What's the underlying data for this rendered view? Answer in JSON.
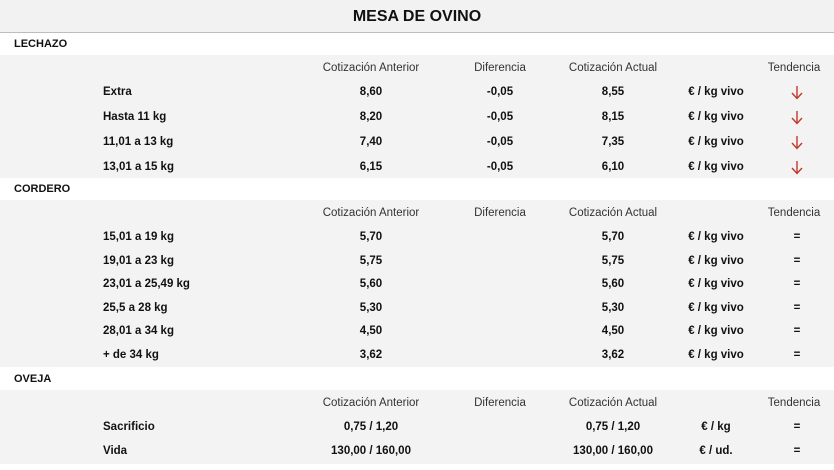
{
  "title": "MESA DE OVINO",
  "columns": {
    "prev": "Cotización Anterior",
    "diff": "Diferencia",
    "curr": "Cotización Actual",
    "trend": "Tendencia"
  },
  "colors": {
    "arrow": "#c0392b",
    "band": "#f3f3f3"
  },
  "sections": [
    {
      "name": "LECHAZO",
      "rows": [
        {
          "label": "Extra",
          "prev": "8,60",
          "diff": "-0,05",
          "curr": "8,55",
          "unit": "€ / kg vivo",
          "trend": "down-arrow-icon"
        },
        {
          "label": "Hasta 11 kg",
          "prev": "8,20",
          "diff": "-0,05",
          "curr": "8,15",
          "unit": "€ / kg vivo",
          "trend": "down-arrow-icon"
        },
        {
          "label": "11,01 a 13 kg",
          "prev": "7,40",
          "diff": "-0,05",
          "curr": "7,35",
          "unit": "€ / kg vivo",
          "trend": "down-arrow-icon"
        },
        {
          "label": "13,01 a 15 kg",
          "prev": "6,15",
          "diff": "-0,05",
          "curr": "6,10",
          "unit": "€ / kg vivo",
          "trend": "down-arrow-icon"
        }
      ]
    },
    {
      "name": "CORDERO",
      "rows": [
        {
          "label": "15,01 a 19 kg",
          "prev": "5,70",
          "diff": "",
          "curr": "5,70",
          "unit": "€ / kg vivo",
          "trend": "="
        },
        {
          "label": "19,01 a 23 kg",
          "prev": "5,75",
          "diff": "",
          "curr": "5,75",
          "unit": "€ / kg vivo",
          "trend": "="
        },
        {
          "label": "23,01 a 25,49 kg",
          "prev": "5,60",
          "diff": "",
          "curr": "5,60",
          "unit": "€ / kg vivo",
          "trend": "="
        },
        {
          "label": "25,5 a 28 kg",
          "prev": "5,30",
          "diff": "",
          "curr": "5,30",
          "unit": "€ / kg vivo",
          "trend": "="
        },
        {
          "label": "28,01 a 34 kg",
          "prev": "4,50",
          "diff": "",
          "curr": "4,50",
          "unit": "€ / kg vivo",
          "trend": "="
        },
        {
          "label": "+ de 34 kg",
          "prev": "3,62",
          "diff": "",
          "curr": "3,62",
          "unit": "€ / kg vivo",
          "trend": "="
        }
      ]
    },
    {
      "name": "OVEJA",
      "rows": [
        {
          "label": "Sacrificio",
          "prev": "0,75 / 1,20",
          "diff": "",
          "curr": "0,75 / 1,20",
          "unit": "€ / kg",
          "trend": "="
        },
        {
          "label": "Vida",
          "prev": "130,00 / 160,00",
          "diff": "",
          "curr": "130,00 / 160,00",
          "unit": "€ / ud.",
          "trend": "="
        }
      ]
    }
  ]
}
